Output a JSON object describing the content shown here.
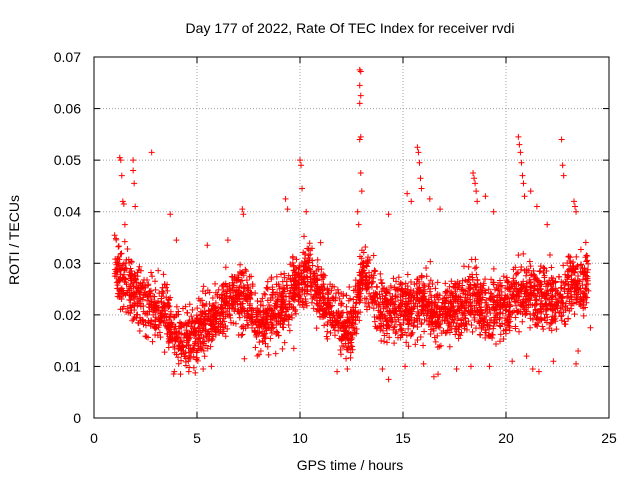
{
  "chart_data": {
    "type": "scatter",
    "title": "Day 177 of 2022, Rate Of TEC Index for receiver rvdi",
    "xlabel": "GPS time / hours",
    "ylabel": "ROTI / TECUs",
    "xlim": [
      0,
      25
    ],
    "ylim": [
      0,
      0.07
    ],
    "x_ticks": [
      "0",
      "5",
      "10",
      "15",
      "20",
      "25"
    ],
    "y_ticks": [
      "0",
      "0.01",
      "0.02",
      "0.03",
      "0.04",
      "0.05",
      "0.06",
      "0.07"
    ],
    "grid": true,
    "marker": "+",
    "marker_color": "#ff0000",
    "series": [
      {
        "name": "ROTI",
        "baseline_profile": [
          [
            1.0,
            0.029
          ],
          [
            1.5,
            0.026
          ],
          [
            2.0,
            0.024
          ],
          [
            2.5,
            0.022
          ],
          [
            3.0,
            0.021
          ],
          [
            3.5,
            0.02
          ],
          [
            4.0,
            0.016
          ],
          [
            4.5,
            0.015
          ],
          [
            5.0,
            0.016
          ],
          [
            5.5,
            0.019
          ],
          [
            6.0,
            0.02
          ],
          [
            6.5,
            0.022
          ],
          [
            7.0,
            0.024
          ],
          [
            7.5,
            0.022
          ],
          [
            8.0,
            0.018
          ],
          [
            8.5,
            0.02
          ],
          [
            9.0,
            0.021
          ],
          [
            9.5,
            0.024
          ],
          [
            10.0,
            0.027
          ],
          [
            10.5,
            0.028
          ],
          [
            11.0,
            0.023
          ],
          [
            11.5,
            0.021
          ],
          [
            12.0,
            0.018
          ],
          [
            12.5,
            0.017
          ],
          [
            13.0,
            0.028
          ],
          [
            13.5,
            0.024
          ],
          [
            14.0,
            0.02
          ],
          [
            14.5,
            0.021
          ],
          [
            15.0,
            0.022
          ],
          [
            15.5,
            0.021
          ],
          [
            16.0,
            0.022
          ],
          [
            16.5,
            0.021
          ],
          [
            17.0,
            0.02
          ],
          [
            17.5,
            0.021
          ],
          [
            18.0,
            0.022
          ],
          [
            18.5,
            0.025
          ],
          [
            19.0,
            0.021
          ],
          [
            19.5,
            0.021
          ],
          [
            20.0,
            0.022
          ],
          [
            20.5,
            0.023
          ],
          [
            21.0,
            0.024
          ],
          [
            21.5,
            0.024
          ],
          [
            22.0,
            0.023
          ],
          [
            22.5,
            0.022
          ],
          [
            23.0,
            0.025
          ],
          [
            23.5,
            0.027
          ],
          [
            24.0,
            0.026
          ]
        ],
        "spikes": [
          [
            1.25,
            0.0505
          ],
          [
            1.3,
            0.05
          ],
          [
            1.35,
            0.047
          ],
          [
            1.4,
            0.042
          ],
          [
            1.45,
            0.0415
          ],
          [
            1.5,
            0.0375
          ],
          [
            1.9,
            0.05
          ],
          [
            1.9,
            0.048
          ],
          [
            1.95,
            0.0455
          ],
          [
            2.0,
            0.041
          ],
          [
            2.8,
            0.0515
          ],
          [
            3.7,
            0.0395
          ],
          [
            4.0,
            0.0345
          ],
          [
            5.5,
            0.0335
          ],
          [
            6.5,
            0.0345
          ],
          [
            7.2,
            0.0405
          ],
          [
            7.25,
            0.0395
          ],
          [
            9.3,
            0.0425
          ],
          [
            9.4,
            0.0405
          ],
          [
            10.0,
            0.05
          ],
          [
            10.05,
            0.049
          ],
          [
            10.1,
            0.0445
          ],
          [
            10.3,
            0.04
          ],
          [
            11.0,
            0.034
          ],
          [
            12.9,
            0.0675
          ],
          [
            12.95,
            0.0672
          ],
          [
            12.9,
            0.0645
          ],
          [
            12.95,
            0.0625
          ],
          [
            12.9,
            0.061
          ],
          [
            12.95,
            0.0545
          ],
          [
            12.9,
            0.054
          ],
          [
            12.95,
            0.0475
          ],
          [
            13.0,
            0.044
          ],
          [
            12.8,
            0.04
          ],
          [
            12.85,
            0.0375
          ],
          [
            14.3,
            0.0395
          ],
          [
            15.2,
            0.0435
          ],
          [
            15.4,
            0.042
          ],
          [
            15.7,
            0.0525
          ],
          [
            15.75,
            0.0515
          ],
          [
            15.8,
            0.0495
          ],
          [
            15.85,
            0.0465
          ],
          [
            15.9,
            0.0445
          ],
          [
            16.3,
            0.0425
          ],
          [
            16.8,
            0.0405
          ],
          [
            18.4,
            0.0475
          ],
          [
            18.45,
            0.0465
          ],
          [
            18.5,
            0.0455
          ],
          [
            18.55,
            0.044
          ],
          [
            18.6,
            0.042
          ],
          [
            19.0,
            0.043
          ],
          [
            19.4,
            0.04
          ],
          [
            20.6,
            0.0545
          ],
          [
            20.65,
            0.053
          ],
          [
            20.7,
            0.0515
          ],
          [
            20.75,
            0.0495
          ],
          [
            20.8,
            0.047
          ],
          [
            20.85,
            0.0455
          ],
          [
            20.9,
            0.043
          ],
          [
            21.2,
            0.044
          ],
          [
            21.5,
            0.041
          ],
          [
            22.0,
            0.0375
          ],
          [
            22.7,
            0.054
          ],
          [
            22.75,
            0.049
          ],
          [
            22.8,
            0.047
          ],
          [
            23.3,
            0.042
          ],
          [
            23.35,
            0.041
          ],
          [
            23.4,
            0.04
          ]
        ],
        "lows": [
          [
            3.9,
            0.009
          ],
          [
            4.2,
            0.0085
          ],
          [
            4.6,
            0.009
          ],
          [
            5.3,
            0.0095
          ],
          [
            5.7,
            0.01
          ],
          [
            7.3,
            0.0115
          ],
          [
            9.7,
            0.0135
          ],
          [
            11.8,
            0.009
          ],
          [
            12.3,
            0.0095
          ],
          [
            14.0,
            0.0095
          ],
          [
            14.3,
            0.0075
          ],
          [
            15.1,
            0.01
          ],
          [
            16.0,
            0.0105
          ],
          [
            16.5,
            0.008
          ],
          [
            16.7,
            0.0085
          ],
          [
            17.6,
            0.0095
          ],
          [
            18.3,
            0.01
          ],
          [
            19.2,
            0.01
          ],
          [
            20.3,
            0.011
          ],
          [
            21.0,
            0.012
          ],
          [
            21.3,
            0.0095
          ],
          [
            21.6,
            0.009
          ],
          [
            22.3,
            0.011
          ],
          [
            23.4,
            0.0105
          ],
          [
            23.5,
            0.013
          ],
          [
            24.1,
            0.0175
          ]
        ]
      }
    ]
  }
}
